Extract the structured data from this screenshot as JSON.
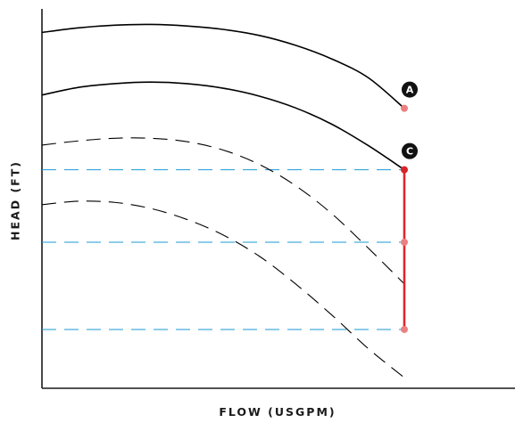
{
  "chart_data": {
    "type": "line",
    "xlabel": "FLOW (USGPM)",
    "ylabel": "HEAD (FT)",
    "xlim": [
      0,
      100
    ],
    "ylim": [
      0,
      100
    ],
    "grid": false,
    "x_ticks": [],
    "y_ticks": [],
    "series": [
      {
        "style": "solid",
        "color": "#000000",
        "x": [
          0,
          10,
          20,
          30,
          40,
          50,
          60,
          70,
          80,
          90,
          100
        ],
        "y": [
          93.8,
          95.0,
          95.7,
          95.9,
          95.5,
          94.6,
          93.0,
          90.4,
          86.8,
          81.9,
          73.8
        ]
      },
      {
        "style": "solid",
        "color": "#000000",
        "x": [
          0,
          10,
          20,
          30,
          40,
          50,
          60,
          70,
          80,
          90,
          100
        ],
        "y": [
          77.3,
          79.3,
          80.3,
          80.7,
          80.3,
          79.1,
          77.0,
          73.9,
          69.6,
          64.0,
          57.6
        ]
      },
      {
        "style": "dashed",
        "color": "#000000",
        "x": [
          0,
          10,
          20,
          30,
          40,
          50,
          60,
          70,
          80,
          90,
          100
        ],
        "y": [
          64.1,
          65.2,
          65.9,
          65.9,
          65.0,
          62.8,
          59.0,
          53.4,
          46.0,
          37.0,
          27.5
        ]
      },
      {
        "style": "dashed",
        "color": "#000000",
        "x": [
          0,
          10,
          20,
          30,
          40,
          50,
          60,
          70,
          80,
          90,
          100
        ],
        "y": [
          48.4,
          49.3,
          49.0,
          47.4,
          44.5,
          40.4,
          34.8,
          27.5,
          19.3,
          10.5,
          2.8
        ]
      }
    ],
    "reference_lines": [
      {
        "orientation": "horizontal",
        "y": 57.6,
        "color": "#1a9ad6",
        "style": "dashed",
        "x_range": [
          0,
          100
        ]
      },
      {
        "orientation": "horizontal",
        "y": 38.5,
        "color": "#1a9ad6",
        "style": "dashed",
        "x_range": [
          0,
          100
        ]
      },
      {
        "orientation": "horizontal",
        "y": 15.5,
        "color": "#1a9ad6",
        "style": "dashed",
        "x_range": [
          0,
          100
        ]
      },
      {
        "orientation": "vertical",
        "x": 100,
        "y_range": [
          15.5,
          57.6
        ],
        "color": "#e0262b",
        "style": "solid"
      }
    ],
    "points": [
      {
        "x": 100,
        "y": 73.8,
        "color": "#ec8080"
      },
      {
        "x": 100,
        "y": 57.6,
        "color": "#d8232a"
      },
      {
        "x": 100,
        "y": 38.5,
        "color": "#ec8080"
      },
      {
        "x": 100,
        "y": 15.5,
        "color": "#ec8080"
      }
    ],
    "annotations": [
      {
        "label": "A",
        "x": 100,
        "y": 73.8
      },
      {
        "label": "C",
        "x": 100,
        "y": 57.6
      }
    ]
  }
}
